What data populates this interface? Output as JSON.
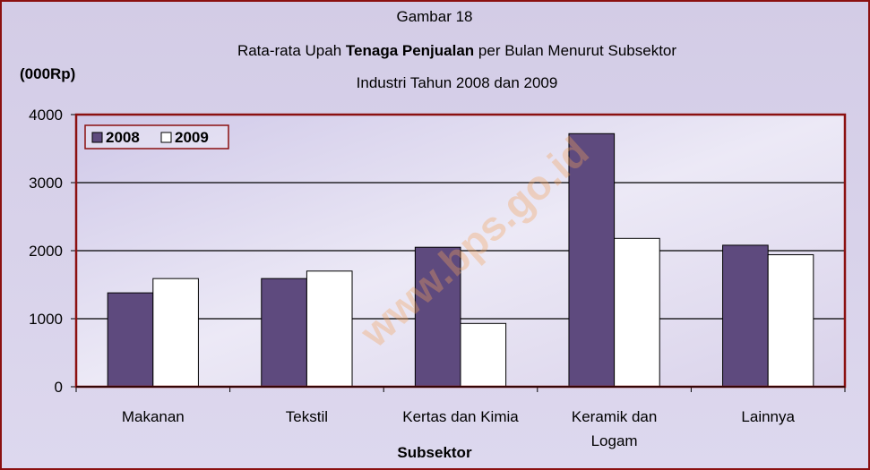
{
  "chart_data": {
    "type": "bar",
    "title": "Gambar 18",
    "subtitle": [
      "Rata-rata Upah",
      "Tenaga Penjualan",
      "per Bulan Menurut Subsektor",
      "Industri Tahun 2008 dan 2009"
    ],
    "y_label": "(000Rp)",
    "x_label": "Subsektor",
    "watermark": "www.bps.go.id",
    "categories": [
      "Makanan",
      "Tekstil",
      "Kertas dan Kimia",
      "Keramik dan Logam",
      "Lainnya"
    ],
    "series": [
      {
        "name": "2008",
        "color": "#5e4a7e",
        "values": [
          1380,
          1590,
          2050,
          3720,
          2080
        ]
      },
      {
        "name": "2009",
        "color": "#ffffff",
        "values": [
          1590,
          1700,
          930,
          2180,
          1940
        ]
      }
    ],
    "ylim": [
      0,
      4000
    ],
    "yticks": [
      0,
      1000,
      2000,
      3000,
      4000
    ],
    "grid": true,
    "legend": "top-left"
  }
}
